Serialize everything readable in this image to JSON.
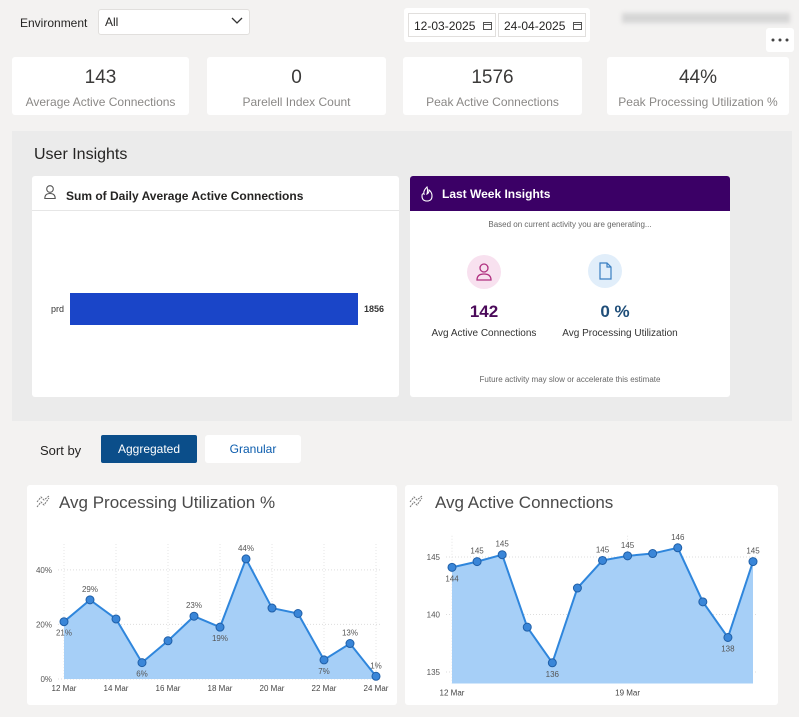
{
  "filters": {
    "environment_label": "Environment",
    "environment_value": "All",
    "start_date": "12-03-2025",
    "end_date": "24-04-2025"
  },
  "kpis": [
    {
      "value": "143",
      "label": "Average Active Connections"
    },
    {
      "value": "0",
      "label": "Parelell Index Count"
    },
    {
      "value": "1576",
      "label": "Peak Active Connections"
    },
    {
      "value": "44%",
      "label": "Peak Processing Utilization %"
    }
  ],
  "section_title": "User Insights",
  "insights": {
    "title": "Last Week Insights",
    "subtitle": "Based on current activity you are generating...",
    "metrics": [
      {
        "value": "142",
        "label": "Avg Active Connections"
      },
      {
        "value": "0 %",
        "label": "Avg Processing Utilization"
      }
    ],
    "footer": "Future activity may slow or accelerate this estimate"
  },
  "sort": {
    "label": "Sort by",
    "options": [
      "Aggregated",
      "Granular"
    ],
    "selected": "Aggregated"
  },
  "chart_data": [
    {
      "type": "bar",
      "orientation": "horizontal",
      "title": "Sum of Daily Average Active Connections",
      "categories": [
        "prd"
      ],
      "values": [
        1856
      ],
      "color": "#1a45c8"
    },
    {
      "type": "area",
      "title": "Avg Processing Utilization %",
      "categories": [
        "12 Mar",
        null,
        "14 Mar",
        null,
        "16 Mar",
        null,
        "18 Mar",
        null,
        "20 Mar",
        null,
        "22 Mar",
        null,
        "24 Mar"
      ],
      "values": [
        21,
        29,
        22,
        6,
        14,
        23,
        19,
        44,
        26,
        24,
        7,
        13,
        1
      ],
      "value_labels": [
        "21%",
        "29%",
        null,
        "6%",
        null,
        "23%",
        "19%",
        "44%",
        null,
        null,
        "7%",
        "13%",
        "1%"
      ],
      "color": "#2f86dc",
      "fill": "#a6cff7",
      "ylim": [
        0,
        48
      ],
      "yticks": [
        {
          "value": 0,
          "label": "0%"
        },
        {
          "value": 20,
          "label": "20%"
        },
        {
          "value": 40,
          "label": "40%"
        }
      ],
      "grid": true
    },
    {
      "type": "area",
      "title": "Avg Active Connections",
      "categories": [
        "12 Mar",
        null,
        null,
        null,
        null,
        null,
        null,
        "19 Mar",
        null,
        null,
        null,
        null,
        null
      ],
      "values": [
        144.1,
        144.6,
        145.2,
        138.9,
        135.8,
        142.3,
        144.7,
        145.1,
        145.3,
        145.8,
        141.1,
        138.0,
        144.6
      ],
      "value_labels": [
        "144",
        "145",
        "145",
        null,
        "136",
        null,
        "145",
        "145",
        null,
        "146",
        null,
        "138",
        "145"
      ],
      "color": "#2f86dc",
      "fill": "#a6cff7",
      "ylim": [
        134,
        146.5
      ],
      "yticks": [
        135,
        140,
        145
      ],
      "grid": true
    }
  ]
}
